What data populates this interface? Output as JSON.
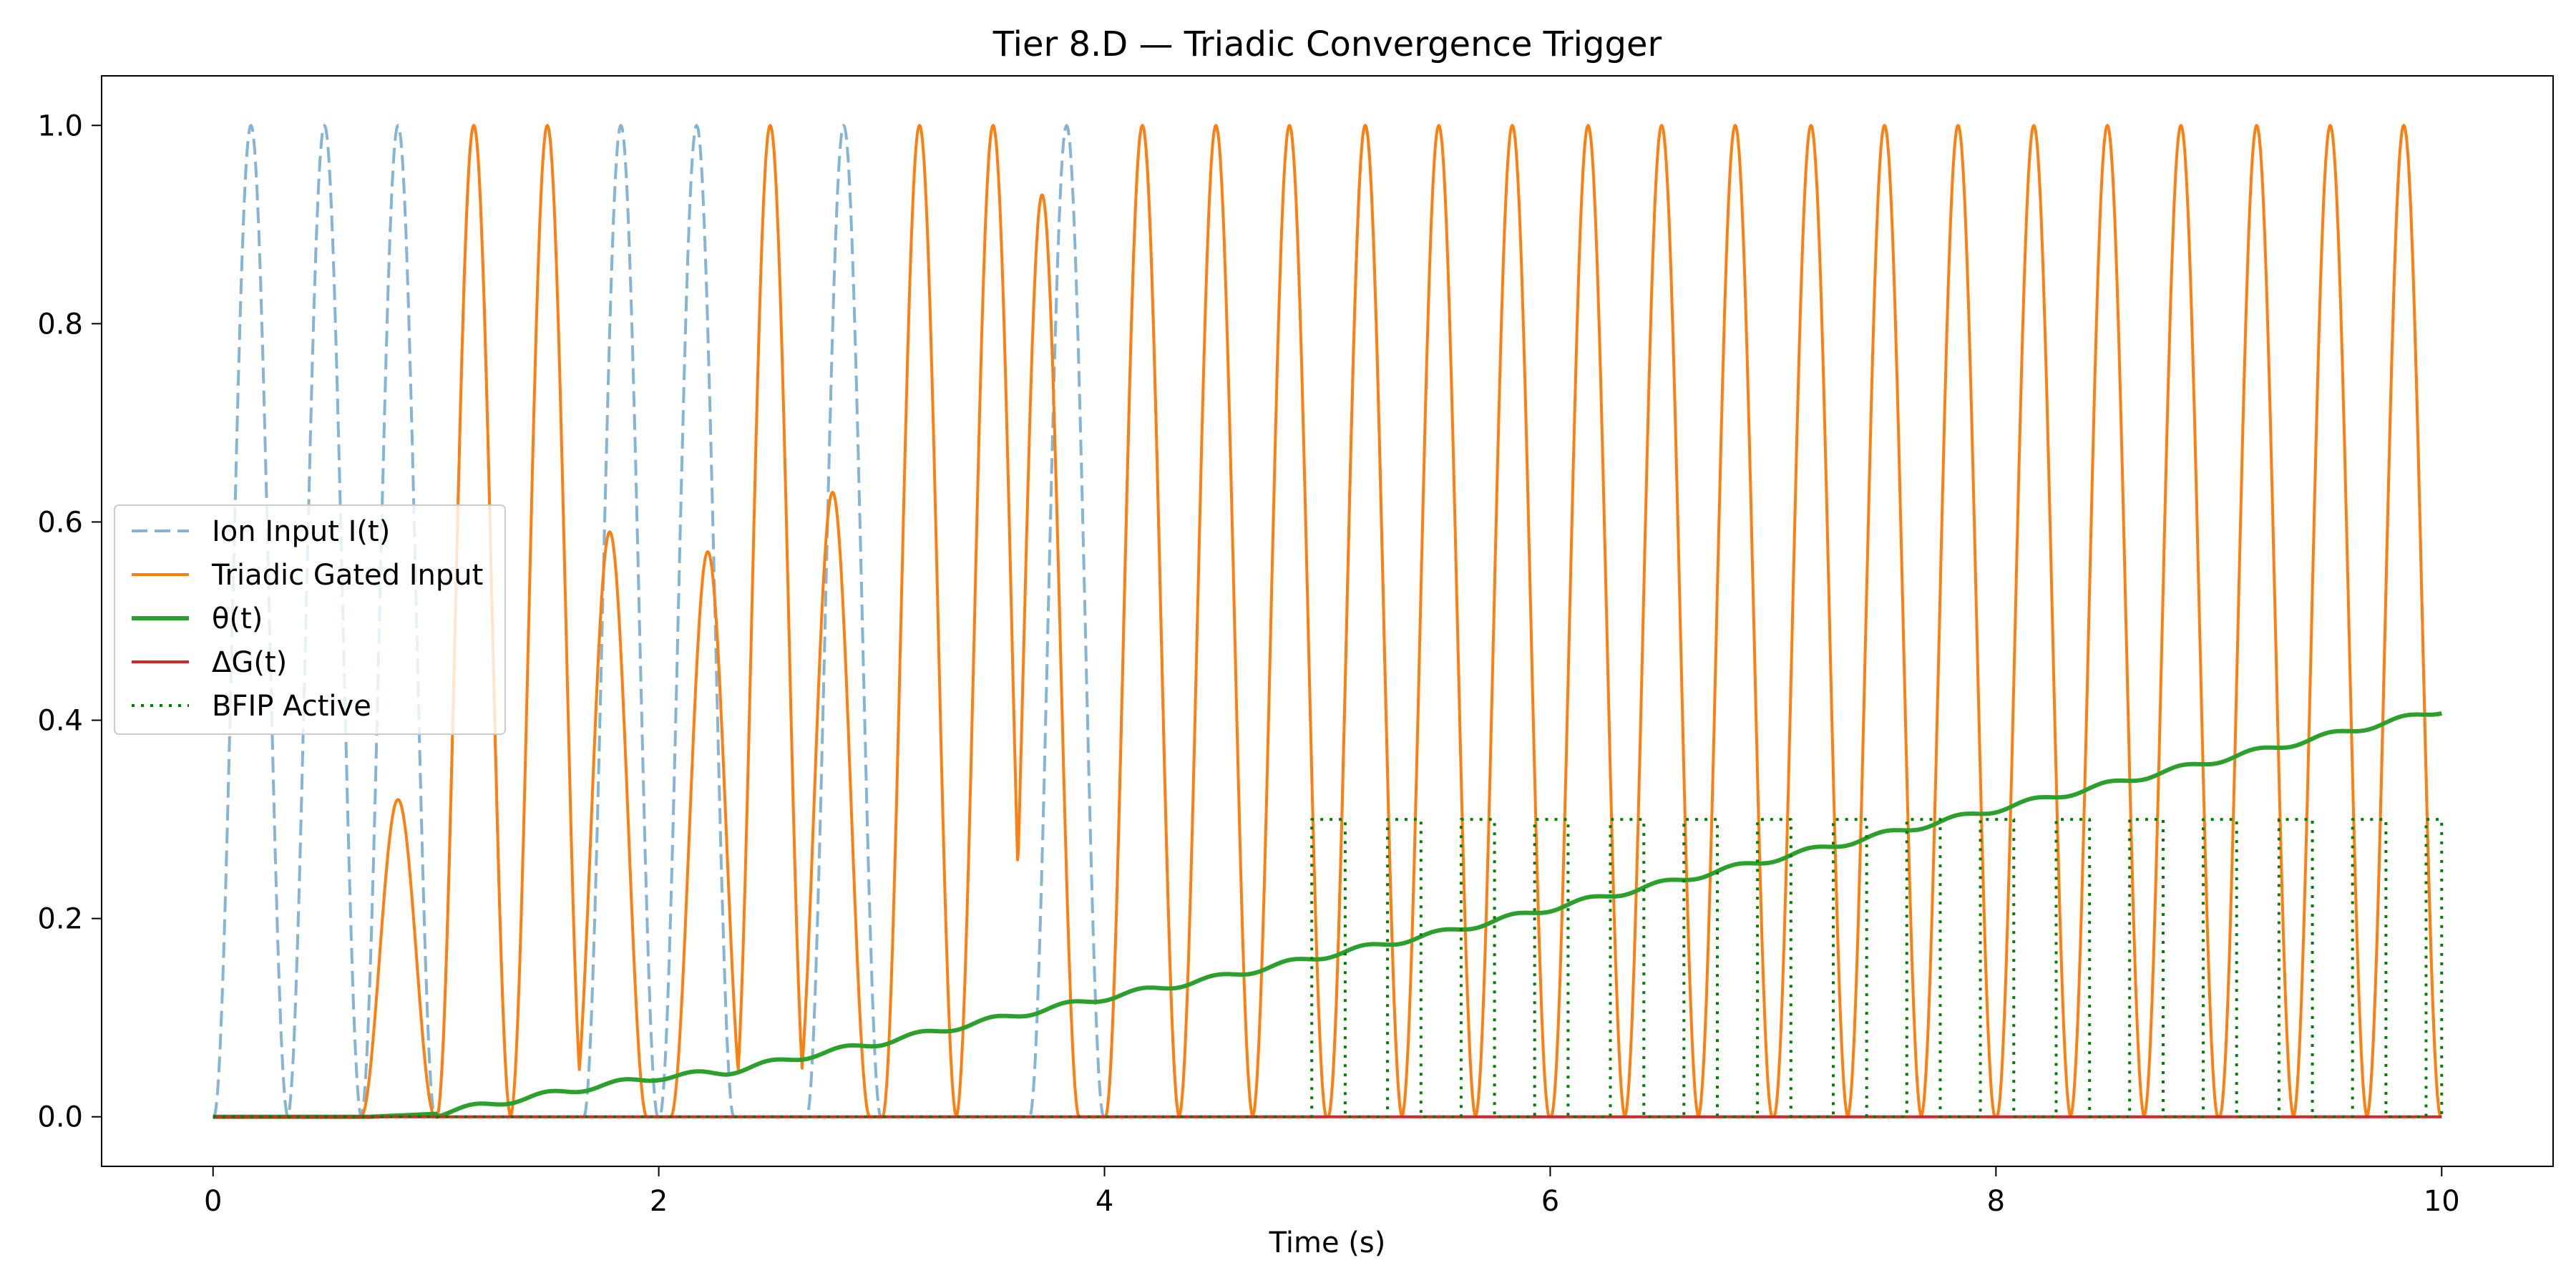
{
  "chart_data": {
    "type": "line",
    "title": "Tier 8.D — Triadic Convergence Trigger",
    "xlabel": "Time (s)",
    "ylabel": "",
    "xlim": [
      -0.5,
      10.5
    ],
    "ylim": [
      -0.05,
      1.05
    ],
    "xticks": [
      0,
      2,
      4,
      6,
      8,
      10
    ],
    "xtick_labels": [
      "0",
      "2",
      "4",
      "6",
      "8",
      "10"
    ],
    "yticks": [
      0.0,
      0.2,
      0.4,
      0.6,
      0.8,
      1.0
    ],
    "ytick_labels": [
      "0.0",
      "0.2",
      "0.4",
      "0.6",
      "0.8",
      "1.0"
    ],
    "grid": false,
    "legend_position": "center-left",
    "series": [
      {
        "name": "Ion Input I(t)",
        "color": "#1f77b4",
        "style": "dashed",
        "opacity": 0.55,
        "shape": "sin^2 pulses, period 0.333 s, visible before t = 5.1 s and after t = 9.6 s",
        "peaks_x": [
          0.17,
          0.5,
          0.83,
          1.17,
          1.83,
          2.17,
          2.83,
          3.83,
          4.17,
          5.17,
          9.83
        ],
        "peak_y": 1.0,
        "min_y": 0.0
      },
      {
        "name": "Triadic Gated Input",
        "color": "#ff7f0e",
        "style": "solid",
        "peaks": [
          {
            "x": 0.83,
            "y": 0.32
          },
          {
            "x": 1.17,
            "y": 1.0
          },
          {
            "x": 1.5,
            "y": 1.0
          },
          {
            "x": 1.78,
            "y": 0.59
          },
          {
            "x": 2.22,
            "y": 0.57
          },
          {
            "x": 2.5,
            "y": 1.0
          },
          {
            "x": 2.78,
            "y": 0.63
          },
          {
            "x": 3.17,
            "y": 1.0
          },
          {
            "x": 3.5,
            "y": 1.0
          },
          {
            "x": 3.72,
            "y": 0.93
          },
          {
            "x": 4.17,
            "y": 1.0
          },
          {
            "x": 4.5,
            "y": 1.0
          },
          {
            "x": 4.83,
            "y": 1.0
          },
          {
            "x": 5.17,
            "y": 1.0
          },
          {
            "x": 5.5,
            "y": 1.0
          },
          {
            "x": 5.83,
            "y": 1.0
          },
          {
            "x": 6.17,
            "y": 1.0
          },
          {
            "x": 6.5,
            "y": 1.0
          },
          {
            "x": 6.83,
            "y": 1.0
          },
          {
            "x": 7.17,
            "y": 1.0
          },
          {
            "x": 7.5,
            "y": 1.0
          },
          {
            "x": 7.83,
            "y": 1.0
          },
          {
            "x": 8.17,
            "y": 1.0
          },
          {
            "x": 8.5,
            "y": 1.0
          },
          {
            "x": 8.83,
            "y": 1.0
          },
          {
            "x": 9.17,
            "y": 1.0
          },
          {
            "x": 9.5,
            "y": 1.0
          },
          {
            "x": 9.83,
            "y": 1.0
          }
        ],
        "min_y": 0.0
      },
      {
        "name": "θ(t)",
        "color": "#2ca02c",
        "style": "solid",
        "x": [
          0,
          0.7,
          1.0,
          1.3,
          1.7,
          2.0,
          2.3,
          2.7,
          3.0,
          3.5,
          4.0,
          4.5,
          5.0,
          5.5,
          6.0,
          6.5,
          7.0,
          7.5,
          8.0,
          8.5,
          9.0,
          9.5,
          10.0
        ],
        "y": [
          0.0,
          0.0,
          0.003,
          0.015,
          0.03,
          0.04,
          0.045,
          0.063,
          0.075,
          0.098,
          0.12,
          0.14,
          0.163,
          0.185,
          0.21,
          0.235,
          0.26,
          0.285,
          0.31,
          0.335,
          0.36,
          0.385,
          0.41
        ]
      },
      {
        "name": "ΔG(t)",
        "color": "#d62728",
        "style": "solid",
        "x": [
          0,
          10
        ],
        "y": [
          0.0,
          0.0
        ]
      },
      {
        "name": "BFIP Active",
        "color": "#008000",
        "style": "dotted",
        "shape": "square pulses of height 0.3 after t ≈ 4.9 s",
        "intervals": [
          [
            4.93,
            5.08
          ],
          [
            5.27,
            5.42
          ],
          [
            5.6,
            5.75
          ],
          [
            5.93,
            6.08
          ],
          [
            6.27,
            6.42
          ],
          [
            6.6,
            6.75
          ],
          [
            6.93,
            7.08
          ],
          [
            7.27,
            7.42
          ],
          [
            7.6,
            7.75
          ],
          [
            7.93,
            8.08
          ],
          [
            8.27,
            8.42
          ],
          [
            8.6,
            8.75
          ],
          [
            8.93,
            9.08
          ],
          [
            9.27,
            9.42
          ],
          [
            9.6,
            9.75
          ],
          [
            9.93,
            10.0
          ]
        ],
        "high_y": 0.3,
        "low_y": 0.0
      }
    ]
  }
}
